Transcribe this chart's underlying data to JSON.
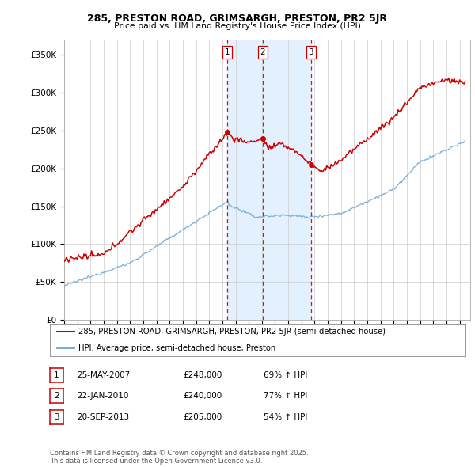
{
  "title1": "285, PRESTON ROAD, GRIMSARGH, PRESTON, PR2 5JR",
  "title2": "Price paid vs. HM Land Registry's House Price Index (HPI)",
  "ylim": [
    0,
    370000
  ],
  "yticks": [
    0,
    50000,
    100000,
    150000,
    200000,
    250000,
    300000,
    350000
  ],
  "ytick_labels": [
    "£0",
    "£50K",
    "£100K",
    "£150K",
    "£200K",
    "£250K",
    "£300K",
    "£350K"
  ],
  "xlim": [
    1995,
    2025.8
  ],
  "sale_dates_num": [
    2007.39,
    2010.06,
    2013.72
  ],
  "sale_prices": [
    248000,
    240000,
    205000
  ],
  "sale_labels": [
    "1",
    "2",
    "3"
  ],
  "vline_color": "#cc0000",
  "property_color": "#cc0000",
  "hpi_color": "#7aaddb",
  "shade_color": "#ddeeff",
  "legend_property": "285, PRESTON ROAD, GRIMSARGH, PRESTON, PR2 5JR (semi-detached house)",
  "legend_hpi": "HPI: Average price, semi-detached house, Preston",
  "table_rows": [
    [
      "1",
      "25-MAY-2007",
      "£248,000",
      "69% ↑ HPI"
    ],
    [
      "2",
      "22-JAN-2010",
      "£240,000",
      "77% ↑ HPI"
    ],
    [
      "3",
      "20-SEP-2013",
      "£205,000",
      "54% ↑ HPI"
    ]
  ],
  "footer": "Contains HM Land Registry data © Crown copyright and database right 2025.\nThis data is licensed under the Open Government Licence v3.0.",
  "background_color": "#ffffff",
  "grid_color": "#cccccc"
}
